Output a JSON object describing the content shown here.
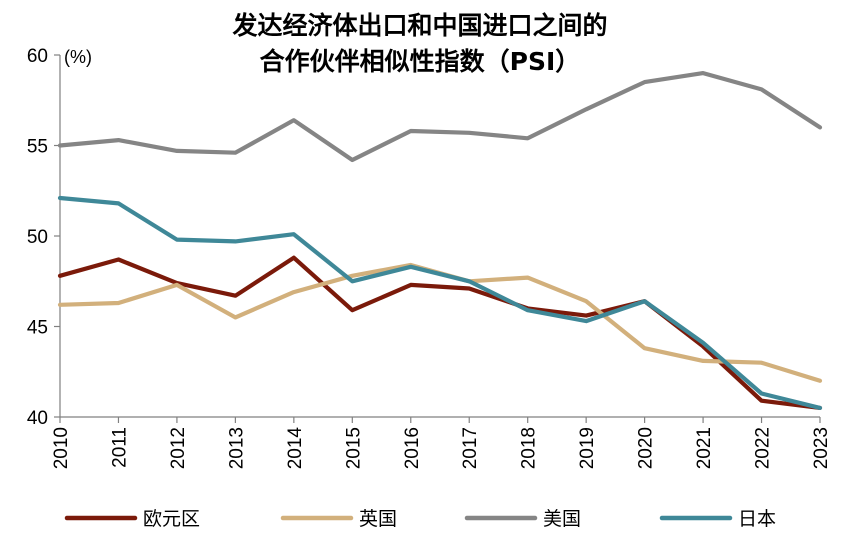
{
  "chart_data": {
    "type": "line",
    "title_line1": "发达经济体出口和中国进口之间的",
    "title_line2": "合作伙伴相似性指数（PSI）",
    "unit": "(%)",
    "x": [
      "2010",
      "2011",
      "2012",
      "2013",
      "2014",
      "2015",
      "2016",
      "2017",
      "2018",
      "2019",
      "2020",
      "2021",
      "2022",
      "2023"
    ],
    "ylim": [
      40,
      60
    ],
    "yticks": [
      "40",
      "45",
      "50",
      "55",
      "60"
    ],
    "legend_position": "bottom",
    "series": [
      {
        "name": "欧元区",
        "color": "#7b1a0a",
        "values": [
          47.8,
          48.7,
          47.4,
          46.7,
          48.8,
          45.9,
          47.3,
          47.1,
          46.0,
          45.6,
          46.4,
          43.9,
          40.9,
          40.5
        ]
      },
      {
        "name": "英国",
        "color": "#d2b07c",
        "values": [
          46.2,
          46.3,
          47.3,
          45.5,
          46.9,
          47.8,
          48.4,
          47.5,
          47.7,
          46.4,
          43.8,
          43.1,
          43.0,
          42.0
        ]
      },
      {
        "name": "美国",
        "color": "#858585",
        "values": [
          55.0,
          55.3,
          54.7,
          54.6,
          56.4,
          54.2,
          55.8,
          55.7,
          55.4,
          57.0,
          58.5,
          59.0,
          58.1,
          56.0
        ]
      },
      {
        "name": "日本",
        "color": "#3f8898",
        "values": [
          52.1,
          51.8,
          49.8,
          49.7,
          50.1,
          47.5,
          48.3,
          47.5,
          45.9,
          45.3,
          46.4,
          44.1,
          41.3,
          40.5
        ]
      }
    ]
  }
}
